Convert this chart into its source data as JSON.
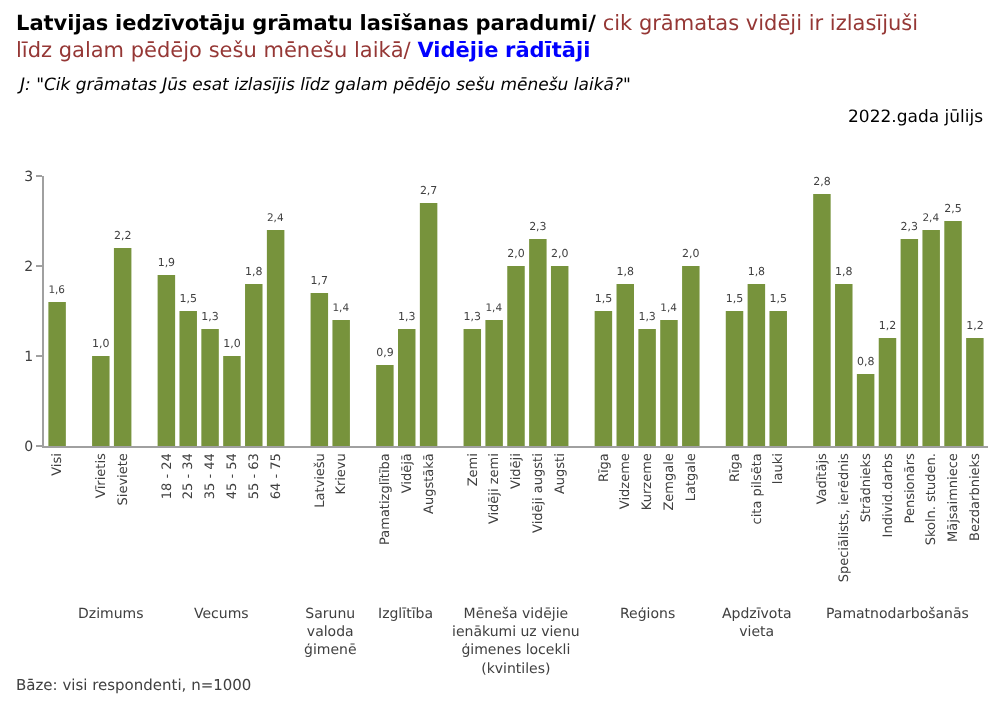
{
  "chart_data": {
    "type": "bar",
    "title": "Latvijas iedzīvotāju grāmatu lasīšanas paradumi/ cik grāmatas vidēji ir izlasījuši līdz galam pēdējo sešu mēnešu laikā/ Vidējie rādītāji",
    "subtitle": "J: \"Cik grāmatas Jūs esat izlasījis līdz galam pēdējo sešu mēnešu laikā?\"",
    "categories": [
      "Visi",
      null,
      "Vīrietis",
      "Sieviete",
      null,
      "18 - 24",
      "25 - 34",
      "35 - 44",
      "45 - 54",
      "55 - 63",
      "64 - 75",
      null,
      "Latviešu",
      "Krievu",
      null,
      "Pamatizglītība",
      "Vidējā",
      "Augstākā",
      null,
      "Zemi",
      "Vidēji zemi",
      "Vidēji",
      "Vidēji augsti",
      "Augsti",
      null,
      "Rīga",
      "Vidzeme",
      "Kurzeme",
      "Zemgale",
      "Latgale",
      null,
      "Rīga",
      "cita pilsēta",
      "lauki",
      null,
      "Vadītājs",
      "Speciālists, ierēdnis",
      "Strādnieks",
      "Individ.darbs",
      "Pensionārs",
      "Skoln. studen.",
      "Mājsaimniece",
      "Bezdarbnieks"
    ],
    "values": [
      1.6,
      null,
      1.0,
      2.2,
      null,
      1.9,
      1.5,
      1.3,
      1.0,
      1.8,
      2.4,
      null,
      1.7,
      1.4,
      null,
      0.9,
      1.3,
      2.7,
      null,
      1.3,
      1.4,
      2.0,
      2.3,
      2.0,
      null,
      1.5,
      1.8,
      1.3,
      1.4,
      2.0,
      null,
      1.5,
      1.8,
      1.5,
      null,
      2.8,
      1.8,
      0.8,
      1.2,
      2.3,
      2.4,
      2.5,
      1.2
    ],
    "value_labels": [
      "1,6",
      null,
      "1,0",
      "2,2",
      null,
      "1,9",
      "1,5",
      "1,3",
      "1,0",
      "1,8",
      "2,4",
      null,
      "1,7",
      "1,4",
      null,
      "0,9",
      "1,3",
      "2,7",
      null,
      "1,3",
      "1,4",
      "2,0",
      "2,3",
      "2,0",
      null,
      "1,5",
      "1,8",
      "1,3",
      "1,4",
      "2,0",
      null,
      "1,5",
      "1,8",
      "1,5",
      null,
      "2,8",
      "1,8",
      "0,8",
      "1,2",
      "2,3",
      "2,4",
      "2,5",
      "1,2"
    ],
    "color": "#77933c",
    "ylim": [
      0,
      3
    ],
    "yticks": [
      0,
      1,
      2,
      3
    ],
    "annotations": [
      "2022.gada jūlijs",
      "Dzimums",
      "Vecums",
      "Sarunu valoda ģimenē",
      "Izglītība",
      "Mēneša vidējie ienākumi uz vienu ģimenes locekli (kvintiles)",
      "Reģions",
      "Apdzīvota vieta",
      "Pamatnodarbošanās",
      "Bāze: visi respondenti, n=1000"
    ]
  }
}
